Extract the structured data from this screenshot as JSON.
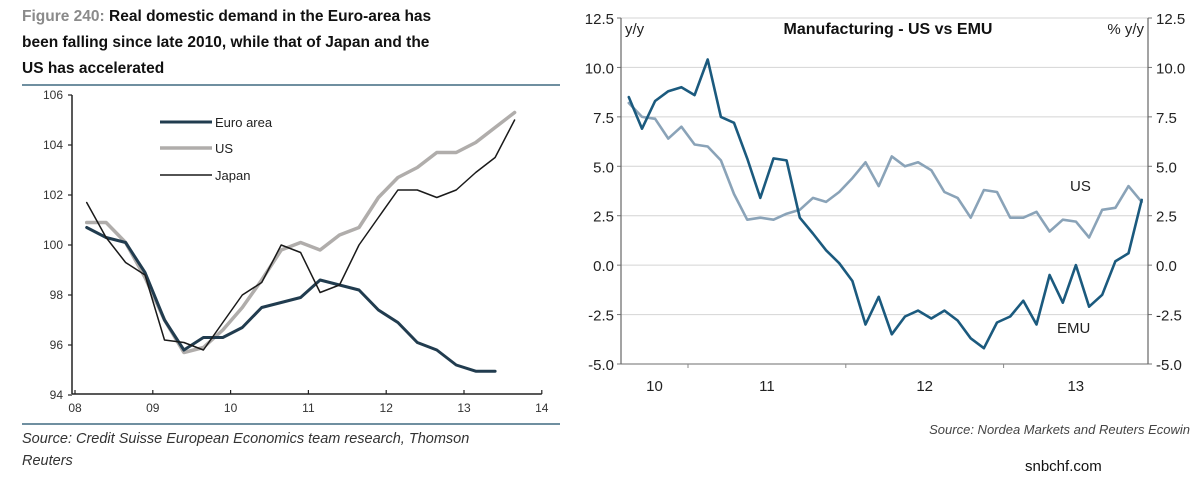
{
  "left_panel": {
    "figure_label": "Figure 240:",
    "title_lines": [
      "Real domestic demand in the Euro-area has",
      "been falling since late 2010, while that of Japan and the",
      "US has accelerated"
    ],
    "source_lines": [
      "Source: Credit Suisse European Economics team research, Thomson",
      "Reuters"
    ]
  },
  "right_panel": {
    "title": "Manufacturing - US vs EMU",
    "left_axis_unit": "y/y",
    "right_axis_unit": "% y/y",
    "source": "Source: Nordea Markets and Reuters Ecowin"
  },
  "watermark": "snbchf.com",
  "chart_data": [
    {
      "type": "line",
      "title": "Real domestic demand in the Euro-area has been falling since late 2010, while that of Japan and the US has accelerated",
      "xlabel": "",
      "ylabel": "",
      "x": [
        "2008Q1",
        "2008Q2",
        "2008Q3",
        "2008Q4",
        "2009Q1",
        "2009Q2",
        "2009Q3",
        "2009Q4",
        "2010Q1",
        "2010Q2",
        "2010Q3",
        "2010Q4",
        "2011Q1",
        "2011Q2",
        "2011Q3",
        "2011Q4",
        "2012Q1",
        "2012Q2",
        "2012Q3",
        "2012Q4",
        "2013Q1",
        "2013Q2",
        "2013Q3"
      ],
      "xticks": [
        "08",
        "09",
        "10",
        "11",
        "12",
        "13",
        "14"
      ],
      "xlim": [
        2008,
        2014
      ],
      "yticks": [
        94,
        96,
        98,
        100,
        102,
        104,
        106
      ],
      "ylim": [
        94,
        106
      ],
      "grid": false,
      "legend": "top-left",
      "series": [
        {
          "name": "US",
          "color": "#b0adab",
          "values": [
            100.9,
            100.9,
            100.1,
            98.7,
            97.0,
            95.7,
            95.9,
            96.6,
            97.5,
            98.6,
            99.8,
            100.1,
            99.8,
            100.4,
            100.7,
            101.9,
            102.7,
            103.1,
            103.7,
            103.7,
            104.1,
            104.7,
            105.3
          ]
        },
        {
          "name": "Euro area",
          "color": "#213c4f",
          "values": [
            100.7,
            100.3,
            100.1,
            98.9,
            97.0,
            95.8,
            96.3,
            96.3,
            96.7,
            97.5,
            97.7,
            97.9,
            98.6,
            98.4,
            98.2,
            97.4,
            96.9,
            96.1,
            95.8,
            95.2,
            94.95,
            94.95,
            null
          ]
        },
        {
          "name": "Japan",
          "color": "#1a1a1a",
          "values": [
            101.7,
            100.3,
            99.3,
            98.8,
            96.2,
            96.1,
            95.8,
            96.9,
            98.0,
            98.5,
            100.0,
            99.7,
            98.1,
            98.4,
            100.0,
            101.1,
            102.2,
            102.2,
            101.9,
            102.2,
            102.9,
            103.5,
            105.0
          ]
        }
      ],
      "legend_order": [
        "Euro area",
        "US",
        "Japan"
      ]
    },
    {
      "type": "line",
      "title": "Manufacturing - US vs EMU",
      "xlabel": "",
      "ylabel": "y/y",
      "ylabel_right": "% y/y",
      "x": [
        "2010-08",
        "2010-09",
        "2010-10",
        "2010-11",
        "2010-12",
        "2011-01",
        "2011-02",
        "2011-03",
        "2011-04",
        "2011-05",
        "2011-06",
        "2011-07",
        "2011-08",
        "2011-09",
        "2011-10",
        "2011-11",
        "2011-12",
        "2012-01",
        "2012-02",
        "2012-03",
        "2012-04",
        "2012-05",
        "2012-06",
        "2012-07",
        "2012-08",
        "2012-09",
        "2012-10",
        "2012-11",
        "2012-12",
        "2013-01",
        "2013-02",
        "2013-03",
        "2013-04",
        "2013-05",
        "2013-06",
        "2013-07",
        "2013-08",
        "2013-09",
        "2013-10",
        "2013-11"
      ],
      "xticks": [
        "10",
        "11",
        "12",
        "13"
      ],
      "yticks": [
        12.5,
        10.0,
        7.5,
        5.0,
        2.5,
        0.0,
        -2.5,
        -5.0
      ],
      "ylim": [
        -5.0,
        12.5
      ],
      "grid": true,
      "legend": "inline labels",
      "series": [
        {
          "name": "US",
          "label": "US",
          "color": "#8aa3b8",
          "values": [
            8.2,
            7.5,
            7.4,
            6.4,
            7.0,
            6.1,
            6.0,
            5.3,
            3.6,
            2.3,
            2.4,
            2.3,
            2.6,
            2.8,
            3.4,
            3.2,
            3.7,
            4.4,
            5.2,
            4.0,
            5.5,
            5.0,
            5.2,
            4.8,
            3.7,
            3.4,
            2.4,
            3.8,
            3.7,
            2.4,
            2.4,
            2.7,
            1.7,
            2.3,
            2.2,
            1.4,
            2.8,
            2.9,
            4.0,
            3.2
          ]
        },
        {
          "name": "EMU",
          "label": "EMU",
          "color": "#1b5a7e",
          "values": [
            8.5,
            6.9,
            8.3,
            8.8,
            9.0,
            8.6,
            10.4,
            7.5,
            7.2,
            5.4,
            3.4,
            5.4,
            5.3,
            2.4,
            1.6,
            0.75,
            0.1,
            -0.8,
            -3.0,
            -1.6,
            -3.5,
            -2.6,
            -2.3,
            -2.7,
            -2.3,
            -2.8,
            -3.7,
            -4.2,
            -2.9,
            -2.6,
            -1.8,
            -3.0,
            -0.5,
            -1.9,
            0.0,
            -2.1,
            -1.5,
            0.2,
            0.6,
            3.3
          ]
        }
      ]
    }
  ]
}
